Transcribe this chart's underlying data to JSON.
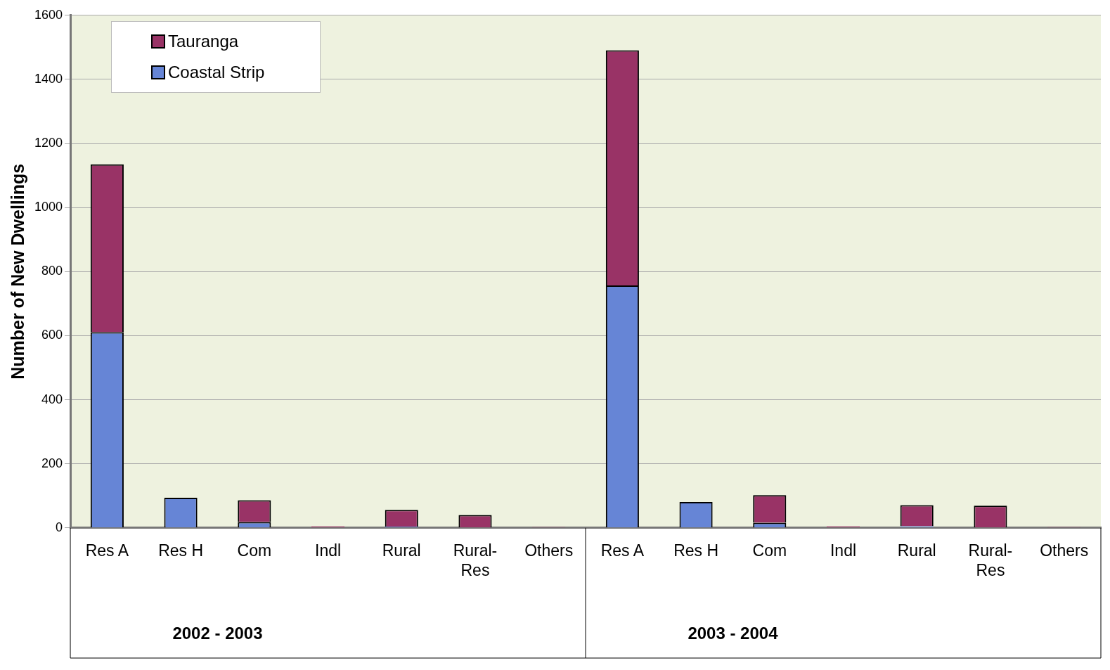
{
  "chart_data": {
    "type": "bar",
    "stacked": true,
    "ylabel": "Number of New Dwellings",
    "categories": [
      "Res A",
      "Res H",
      "Com",
      "Indl",
      "Rural",
      "Rural-Res",
      "Others",
      "Res A",
      "Res H",
      "Com",
      "Indl",
      "Rural",
      "Rural-Res",
      "Others"
    ],
    "series": [
      {
        "name": "Coastal Strip",
        "color": "#6685d6",
        "values": [
          611,
          94,
          18,
          null,
          4,
          null,
          null,
          757,
          81,
          16,
          null,
          5,
          null,
          null
        ]
      },
      {
        "name": "Tauranga",
        "color": "#993366",
        "values": [
          524,
          null,
          68,
          5,
          52,
          40,
          3,
          734,
          null,
          86,
          5,
          66,
          69,
          3
        ]
      }
    ],
    "ylim": [
      0,
      1600
    ],
    "yticks": [
      0,
      200,
      400,
      600,
      800,
      1000,
      1200,
      1400,
      1600
    ],
    "grid": "y",
    "legend": "top left",
    "annotations": [
      "2002 - 2003",
      "2003 - 2004"
    ]
  }
}
